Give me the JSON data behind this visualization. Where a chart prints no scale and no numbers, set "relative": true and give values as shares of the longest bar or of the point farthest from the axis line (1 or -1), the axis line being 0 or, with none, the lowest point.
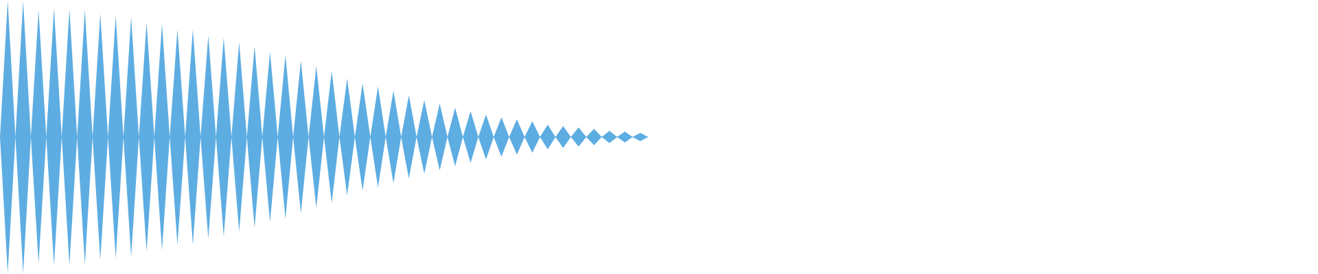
{
  "chart_data": {
    "type": "area",
    "relative": true,
    "categories": [
      null,
      null,
      null,
      null,
      null,
      null,
      null,
      null,
      null,
      null,
      null,
      null,
      null,
      null,
      null,
      null,
      null,
      null,
      null,
      null,
      null,
      null,
      null,
      null,
      null,
      null,
      null,
      null,
      null,
      null,
      null,
      null,
      null,
      null,
      null,
      null,
      null,
      null,
      null,
      null,
      null,
      null,
      null,
      null,
      null,
      null,
      null,
      null,
      null,
      null,
      null,
      null,
      null,
      null,
      null,
      null,
      null,
      null,
      null,
      null,
      null,
      null,
      null,
      null,
      null,
      null,
      null,
      null,
      null,
      null,
      null,
      null,
      null,
      null,
      null,
      null,
      null,
      null,
      null,
      null,
      null,
      null,
      null,
      null,
      null
    ],
    "series": [
      {
        "color": "#5dade2",
        "values": [
          0,
          1.0,
          0,
          1.0,
          0,
          0.93,
          0,
          0.945,
          0,
          0.94,
          0,
          0.935,
          0,
          0.905,
          0,
          0.89,
          0,
          0.88,
          0,
          0.84,
          0,
          0.83,
          0,
          0.79,
          0,
          0.79,
          0,
          0.745,
          0,
          0.73,
          0,
          0.695,
          0,
          0.665,
          0,
          0.625,
          0,
          0.6,
          0,
          0.56,
          0,
          0.52,
          0,
          0.485,
          0,
          0.43,
          0,
          0.395,
          0,
          0.37,
          0,
          0.34,
          0,
          0.305,
          0,
          0.27,
          0,
          0.245,
          0,
          0.215,
          0,
          0.19,
          0,
          0.165,
          0,
          0.145,
          0,
          0.13,
          0,
          0.115,
          0,
          0.09,
          0,
          0.08,
          0,
          0.07,
          0,
          0.06,
          0,
          0.045,
          0,
          0.04,
          0,
          0.03,
          0
        ]
      },
      {
        "color": "#5dade2",
        "values": [
          0,
          -1.0,
          0,
          -1.0,
          0,
          -0.93,
          0,
          -0.945,
          0,
          -0.94,
          0,
          -0.935,
          0,
          -0.905,
          0,
          -0.89,
          0,
          -0.88,
          0,
          -0.84,
          0,
          -0.83,
          0,
          -0.79,
          0,
          -0.79,
          0,
          -0.745,
          0,
          -0.73,
          0,
          -0.695,
          0,
          -0.665,
          0,
          -0.625,
          0,
          -0.6,
          0,
          -0.56,
          0,
          -0.52,
          0,
          -0.485,
          0,
          -0.43,
          0,
          -0.395,
          0,
          -0.37,
          0,
          -0.34,
          0,
          -0.305,
          0,
          -0.27,
          0,
          -0.245,
          0,
          -0.215,
          0,
          -0.19,
          0,
          -0.165,
          0,
          -0.145,
          0,
          -0.13,
          0,
          -0.115,
          0,
          -0.09,
          0,
          -0.08,
          0,
          -0.07,
          0,
          -0.06,
          0,
          -0.045,
          0,
          -0.04,
          0,
          -0.03,
          0
        ]
      }
    ]
  }
}
